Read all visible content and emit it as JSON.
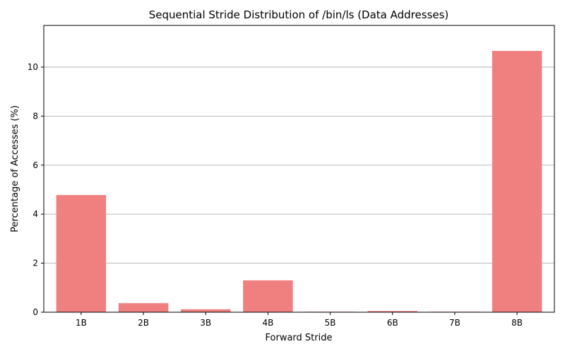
{
  "chart_data": {
    "type": "bar",
    "title": "Sequential Stride Distribution of /bin/ls (Data Addresses)",
    "xlabel": "Forward Stride",
    "ylabel": "Percentage of Accesses (%)",
    "categories": [
      "1B",
      "2B",
      "3B",
      "4B",
      "5B",
      "6B",
      "7B",
      "8B"
    ],
    "values": [
      4.78,
      0.37,
      0.12,
      1.3,
      0.02,
      0.05,
      0.02,
      10.66
    ],
    "ylim": [
      0,
      11.7
    ],
    "yticks": [
      0,
      2,
      4,
      6,
      8,
      10
    ],
    "grid": "horizontal",
    "bar_color": "#f08080",
    "grid_color": "#b0b0b0"
  }
}
